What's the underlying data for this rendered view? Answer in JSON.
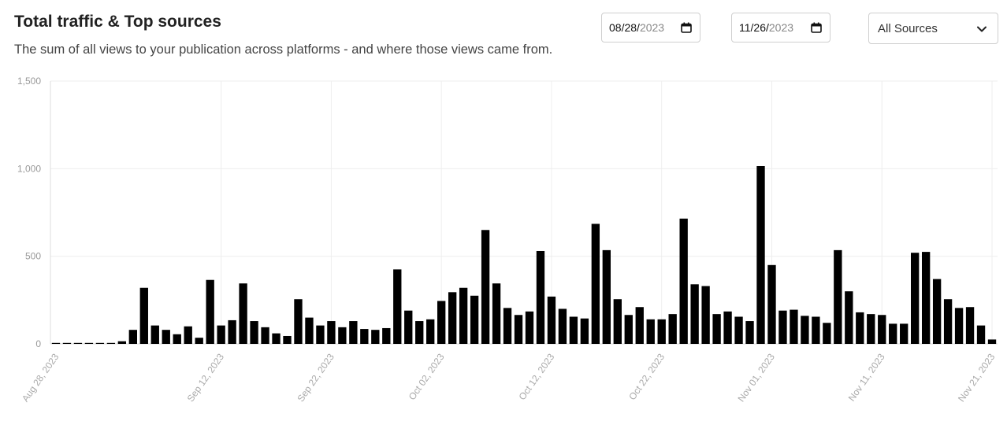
{
  "header": {
    "title": "Total traffic & Top sources",
    "subtitle": "The sum of all views to your publication across platforms - and where those views came from."
  },
  "filters": {
    "start_date": {
      "mmdd": "08/28/",
      "year": "2023"
    },
    "end_date": {
      "mmdd": "11/26/",
      "year": "2023"
    },
    "source_select": "All Sources"
  },
  "colors": {
    "bar": "#000000",
    "grid": "#eeeeee",
    "axis": "#dddddd"
  },
  "chart_data": {
    "type": "bar",
    "x_start": "2023-08-28",
    "x_end": "2023-11-26",
    "ylim": [
      0,
      1500
    ],
    "yticks": [
      {
        "value": 0,
        "label": "0"
      },
      {
        "value": 500,
        "label": "500"
      },
      {
        "value": 1000,
        "label": "1,000"
      },
      {
        "value": 1500,
        "label": "1,500"
      }
    ],
    "xtick_labels": [
      "Aug 28, 2023",
      "Sep 12, 2023",
      "Sep 22, 2023",
      "Oct 02, 2023",
      "Oct 12, 2023",
      "Oct 22, 2023",
      "Nov 01, 2023",
      "Nov 11, 2023",
      "Nov 21, 2023"
    ],
    "values": [
      5,
      2,
      2,
      1,
      1,
      2,
      15,
      80,
      320,
      105,
      80,
      55,
      100,
      35,
      365,
      105,
      135,
      345,
      130,
      95,
      60,
      45,
      255,
      150,
      105,
      130,
      95,
      130,
      85,
      80,
      90,
      425,
      190,
      130,
      140,
      245,
      295,
      320,
      275,
      650,
      345,
      205,
      165,
      185,
      530,
      270,
      200,
      155,
      145,
      685,
      535,
      255,
      165,
      210,
      140,
      140,
      170,
      715,
      340,
      330,
      170,
      185,
      155,
      130,
      1015,
      450,
      190,
      195,
      160,
      155,
      120,
      535,
      300,
      180,
      170,
      165,
      115,
      115,
      520,
      525,
      370,
      255,
      205,
      210,
      105,
      25
    ],
    "grid": true,
    "legend": "none"
  }
}
